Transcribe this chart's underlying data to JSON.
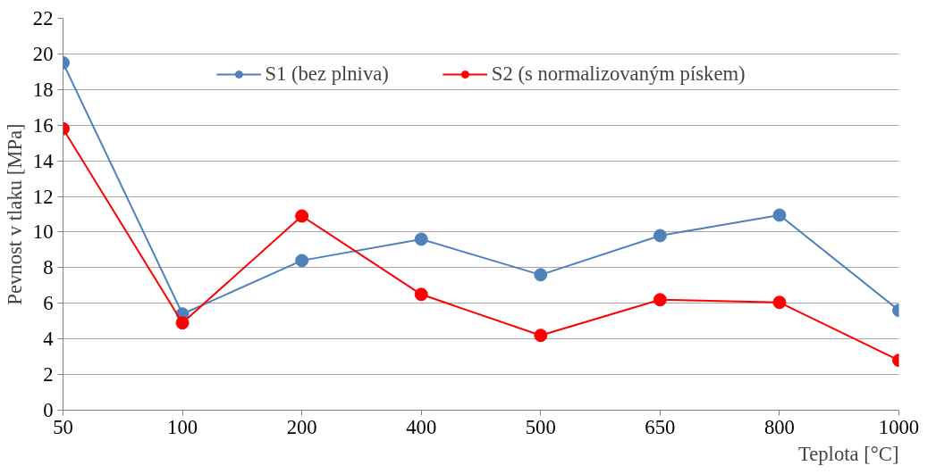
{
  "chart_data": {
    "type": "line",
    "xlabel": "Teplota [°C]",
    "ylabel": "Pevnost v tlaku [MPa]",
    "categories": [
      "50",
      "100",
      "200",
      "400",
      "500",
      "650",
      "800",
      "1000"
    ],
    "series": [
      {
        "name": "S1 (bez plniva)",
        "color": "#4f81bd",
        "values": [
          19.5,
          5.4,
          8.4,
          9.6,
          7.6,
          9.8,
          10.95,
          5.6
        ]
      },
      {
        "name": "S2 (s normalizovaným pískem)",
        "color": "#ff0000",
        "values": [
          15.8,
          4.9,
          10.9,
          6.5,
          4.2,
          6.2,
          6.05,
          2.8
        ]
      }
    ],
    "ylim": [
      0,
      22
    ],
    "yticks": [
      0,
      2,
      4,
      6,
      8,
      10,
      12,
      14,
      16,
      18,
      20,
      22
    ],
    "grid": "y",
    "legend": "top",
    "marker": "circle",
    "line_style": "solid"
  }
}
